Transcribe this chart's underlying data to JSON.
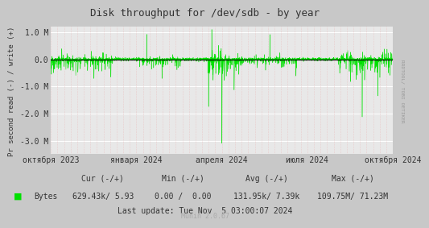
{
  "title": "Disk throughput for /dev/sdb - by year",
  "ylabel": "Pr second read (-) / write (+)",
  "background_color": "#c8c8c8",
  "plot_bg_color": "#e8e8e8",
  "grid_color": "#ffffff",
  "minor_grid_color": "#e8b4b4",
  "line_color": "#00e000",
  "zero_line_color": "#000000",
  "ylim": [
    -3500000,
    1200000
  ],
  "yticks": [
    -3000000,
    -2000000,
    -1000000,
    0.0,
    1000000
  ],
  "ytick_labels": [
    "-3.0 M",
    "-2.0 M",
    "-1.0 M",
    "0.0",
    "1.0 M"
  ],
  "xtick_labels": [
    "октября 2023",
    "января 2024",
    "апреля 2024",
    "июля 2024",
    "октября 2024"
  ],
  "cur_neg": "629.43k",
  "cur_pos": "5.93",
  "min_neg": "0.00",
  "min_pos": "0.00",
  "avg_neg": "131.95k",
  "avg_pos": "7.39k",
  "max_neg": "109.75M",
  "max_pos": "71.23M",
  "last_update": "Last update: Tue Nov  5 03:00:07 2024",
  "munin_version": "Munin 2.0.67",
  "right_label": "RRDTOOL/ TOBI OETIKER"
}
